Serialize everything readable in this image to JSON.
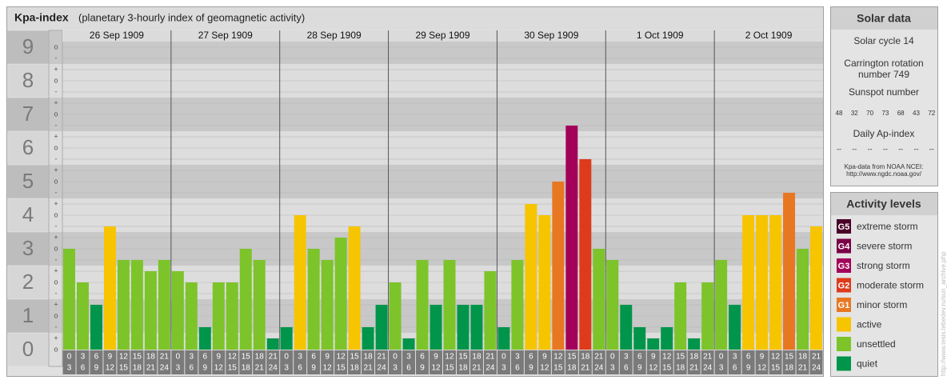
{
  "chart_data": {
    "type": "bar",
    "title": "Kpa-index",
    "subtitle": "(planetary 3-hourly index of geomagnetic activity)",
    "groups": [
      {
        "name": "26 Sep 1909",
        "values": [
          3,
          2,
          1.333,
          3.667,
          2.667,
          2.667,
          2.333,
          2.667
        ],
        "colors": [
          "#7cc42a",
          "#7cc42a",
          "#00954a",
          "#f7c400",
          "#7cc42a",
          "#7cc42a",
          "#7cc42a",
          "#7cc42a"
        ]
      },
      {
        "name": "27 Sep 1909",
        "values": [
          2.333,
          2,
          0.667,
          2,
          2,
          3,
          2.667,
          0.333
        ],
        "colors": [
          "#7cc42a",
          "#7cc42a",
          "#00954a",
          "#7cc42a",
          "#7cc42a",
          "#7cc42a",
          "#7cc42a",
          "#00954a"
        ]
      },
      {
        "name": "28 Sep 1909",
        "values": [
          0.667,
          4,
          3,
          2.667,
          3.333,
          3.667,
          0.667,
          1.333
        ],
        "colors": [
          "#00954a",
          "#f7c400",
          "#7cc42a",
          "#7cc42a",
          "#7cc42a",
          "#f7c400",
          "#00954a",
          "#00954a"
        ]
      },
      {
        "name": "29 Sep 1909",
        "values": [
          2,
          0.333,
          2.667,
          1.333,
          2.667,
          1.333,
          1.333,
          2.333
        ],
        "colors": [
          "#7cc42a",
          "#00954a",
          "#7cc42a",
          "#00954a",
          "#7cc42a",
          "#00954a",
          "#00954a",
          "#7cc42a"
        ]
      },
      {
        "name": "30 Sep 1909",
        "values": [
          0.667,
          2.667,
          4.333,
          4,
          5,
          6.667,
          5.667,
          3
        ],
        "colors": [
          "#00954a",
          "#7cc42a",
          "#f7c400",
          "#f7c400",
          "#e87722",
          "#a3005a",
          "#dd3b1b",
          "#7cc42a"
        ]
      },
      {
        "name": "1 Oct 1909",
        "values": [
          2.667,
          1.333,
          0.667,
          0.333,
          0.667,
          2,
          0.333,
          2
        ],
        "colors": [
          "#7cc42a",
          "#00954a",
          "#00954a",
          "#00954a",
          "#00954a",
          "#7cc42a",
          "#00954a",
          "#7cc42a"
        ]
      },
      {
        "name": "2 Oct 1909",
        "values": [
          2.667,
          1.333,
          4,
          4,
          4,
          4.667,
          3,
          3.667
        ],
        "colors": [
          "#7cc42a",
          "#00954a",
          "#f7c400",
          "#f7c400",
          "#f7c400",
          "#e87722",
          "#7cc42a",
          "#f7c400"
        ]
      }
    ],
    "hours": [
      [
        0,
        3
      ],
      [
        3,
        6
      ],
      [
        6,
        9
      ],
      [
        9,
        12
      ],
      [
        12,
        15
      ],
      [
        15,
        18
      ],
      [
        18,
        21
      ],
      [
        21,
        24
      ]
    ],
    "ylim": [
      0,
      9.5
    ],
    "yticks": [
      0,
      1,
      2,
      3,
      4,
      5,
      6,
      7,
      8,
      9
    ],
    "yminor": [
      {
        "value": 0,
        "label": "o"
      },
      {
        "value": 0.333,
        "label": "+"
      },
      {
        "value": 0.667,
        "label": "-"
      },
      {
        "value": 1,
        "label": "o"
      },
      {
        "value": 1.333,
        "label": "+"
      },
      {
        "value": 1.667,
        "label": "-"
      },
      {
        "value": 2,
        "label": "o"
      },
      {
        "value": 2.333,
        "label": "+"
      },
      {
        "value": 2.667,
        "label": "-"
      },
      {
        "value": 3,
        "label": "o"
      },
      {
        "value": 3.333,
        "label": "+"
      },
      {
        "value": 3.667,
        "label": "-"
      },
      {
        "value": 4,
        "label": "o"
      },
      {
        "value": 4.333,
        "label": "+"
      },
      {
        "value": 4.667,
        "label": "-"
      },
      {
        "value": 5,
        "label": "o"
      },
      {
        "value": 5.333,
        "label": "+"
      },
      {
        "value": 5.667,
        "label": "-"
      },
      {
        "value": 6,
        "label": "o"
      },
      {
        "value": 6.333,
        "label": "+"
      },
      {
        "value": 6.667,
        "label": "-"
      },
      {
        "value": 7,
        "label": "o"
      },
      {
        "value": 7.333,
        "label": "+"
      },
      {
        "value": 7.667,
        "label": "-"
      },
      {
        "value": 8,
        "label": "o"
      },
      {
        "value": 8.333,
        "label": "+"
      },
      {
        "value": 8.667,
        "label": "-"
      },
      {
        "value": 9,
        "label": "o"
      }
    ],
    "grid": true
  },
  "solar_data": {
    "title": "Solar data",
    "cycle": "Solar cycle 14",
    "carrington": "Carrington rotation number 749",
    "sunspot_title": "Sunspot number",
    "sunspots": [
      48,
      32,
      70,
      73,
      68,
      43,
      72
    ],
    "ap_title": "Daily Ap-index",
    "ap": [
      "--",
      "--",
      "--",
      "--",
      "--",
      "--",
      "--"
    ],
    "source": "Kpa-data from NOAA NCEI:",
    "source_url": "http://www.ngdc.noaa.gov/"
  },
  "activity_levels": {
    "title": "Activity levels",
    "items": [
      {
        "code": "G5",
        "name": "extreme storm",
        "color": "#4a0026"
      },
      {
        "code": "G4",
        "name": "severe storm",
        "color": "#7a0046"
      },
      {
        "code": "G3",
        "name": "strong storm",
        "color": "#a3005a"
      },
      {
        "code": "G2",
        "name": "moderate storm",
        "color": "#dd3b1b"
      },
      {
        "code": "G1",
        "name": "minor storm",
        "color": "#e87722"
      },
      {
        "code": "",
        "name": "active",
        "color": "#f7c400"
      },
      {
        "code": "",
        "name": "unsettled",
        "color": "#7cc42a"
      },
      {
        "code": "",
        "name": "quiet",
        "color": "#00954a"
      }
    ]
  },
  "side_link": "http://www.tesis.lebedev.ru/sun_archive.php"
}
